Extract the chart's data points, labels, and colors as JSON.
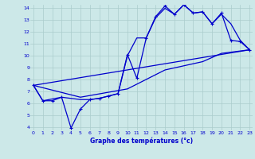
{
  "xlabel": "Graphe des températures (°c)",
  "bg_color": "#cce8e8",
  "grid_color": "#aacccc",
  "line_color": "#0000cc",
  "xmin": 0,
  "xmax": 23,
  "ymin": 4,
  "ymax": 14,
  "yticks": [
    4,
    5,
    6,
    7,
    8,
    9,
    10,
    11,
    12,
    13,
    14
  ],
  "xticks": [
    0,
    1,
    2,
    3,
    4,
    5,
    6,
    7,
    8,
    9,
    10,
    11,
    12,
    13,
    14,
    15,
    16,
    17,
    18,
    19,
    20,
    21,
    22,
    23
  ],
  "series": [
    {
      "x": [
        0,
        1,
        2,
        3,
        4,
        5,
        6,
        7,
        8,
        9,
        10,
        11,
        12,
        13,
        14,
        15,
        16,
        17,
        18,
        19,
        20,
        21,
        22,
        23
      ],
      "y": [
        7.5,
        6.2,
        6.2,
        6.5,
        3.9,
        5.5,
        6.3,
        6.4,
        6.6,
        6.8,
        10.1,
        8.1,
        11.5,
        13.3,
        14.2,
        13.5,
        14.3,
        13.6,
        13.7,
        12.7,
        13.6,
        11.3,
        11.2,
        10.5
      ],
      "marker": true,
      "lw": 0.9
    },
    {
      "x": [
        0,
        1,
        3,
        5,
        6,
        7,
        8,
        9,
        10,
        11,
        12,
        13,
        14,
        15,
        16,
        17,
        18,
        19,
        20,
        21,
        22,
        23
      ],
      "y": [
        7.5,
        6.2,
        6.5,
        6.3,
        6.3,
        6.4,
        6.6,
        6.8,
        10.0,
        11.5,
        11.5,
        13.2,
        14.0,
        13.5,
        14.3,
        13.6,
        13.7,
        12.7,
        13.5,
        12.7,
        11.3,
        10.5
      ],
      "marker": false,
      "lw": 0.9
    },
    {
      "x": [
        0,
        23
      ],
      "y": [
        7.5,
        10.5
      ],
      "marker": false,
      "lw": 0.9
    },
    {
      "x": [
        0,
        5,
        10,
        14,
        18,
        20,
        23
      ],
      "y": [
        7.5,
        6.5,
        7.2,
        8.8,
        9.5,
        10.2,
        10.5
      ],
      "marker": false,
      "lw": 0.9
    }
  ]
}
